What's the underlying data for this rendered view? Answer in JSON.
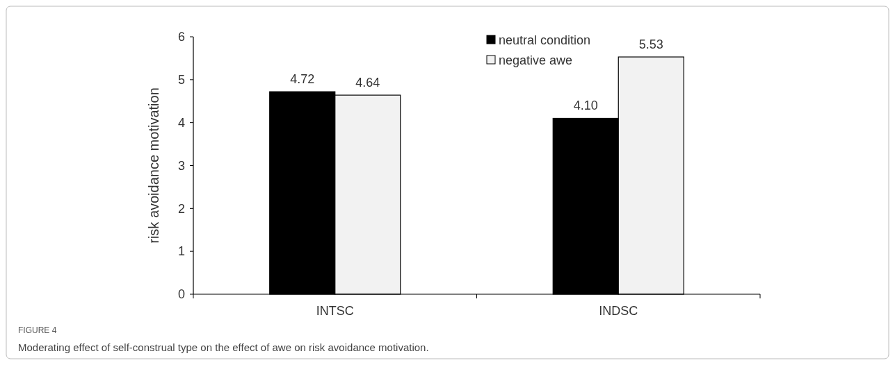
{
  "chart_data": {
    "type": "bar",
    "ylabel": "risk avoidance motivation",
    "categories": [
      "INTSC",
      "INDSC"
    ],
    "series": [
      {
        "name": "neutral condition",
        "color": "#000000",
        "values": [
          4.72,
          4.1
        ],
        "value_labels": [
          "4.72",
          "4.10"
        ]
      },
      {
        "name": "negative awe",
        "color": "#f2f2f2",
        "values": [
          4.64,
          5.53
        ],
        "value_labels": [
          "4.64",
          "5.53"
        ]
      }
    ],
    "ylim": [
      0,
      6
    ],
    "yticks": [
      0,
      1,
      2,
      3,
      4,
      5,
      6
    ],
    "grid": false,
    "legend": "top",
    "annotations": [
      "FIGURE 4",
      "Moderating effect of self-construal type on the effect of awe on risk avoidance motivation."
    ]
  }
}
